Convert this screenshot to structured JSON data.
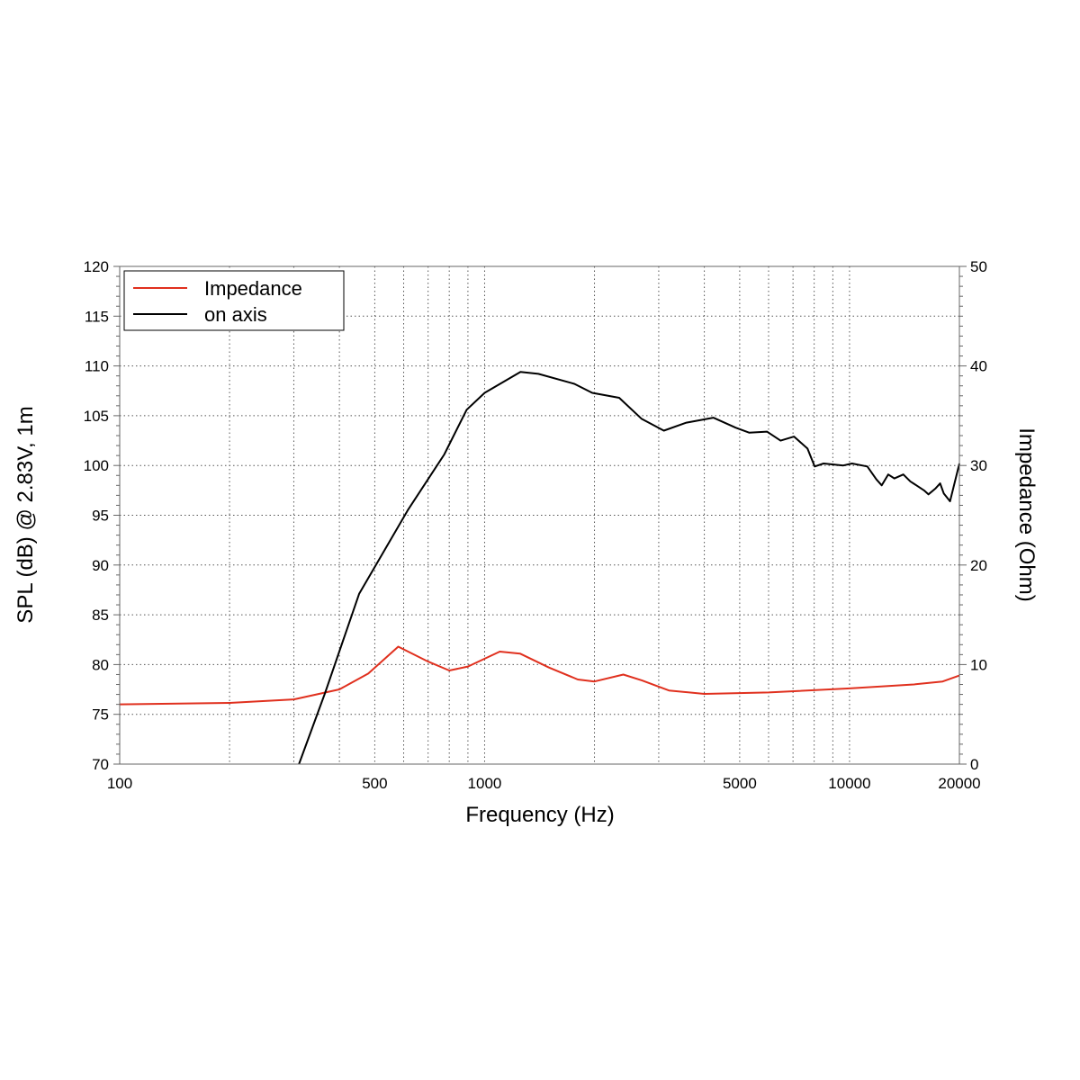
{
  "chart_data": {
    "type": "line",
    "title": "",
    "xlabel": "Frequency (Hz)",
    "ylabel": "SPL (dB) @ 2.83V, 1m",
    "y2label": "Impedance (Ohm)",
    "xscale": "log",
    "xlim": [
      100,
      20000
    ],
    "ylim": [
      70,
      120
    ],
    "y2lim": [
      0,
      50
    ],
    "xticks": [
      100,
      500,
      1000,
      5000,
      10000,
      20000
    ],
    "yticks": [
      70,
      75,
      80,
      85,
      90,
      95,
      100,
      105,
      110,
      115,
      120
    ],
    "y2ticks": [
      0,
      10,
      20,
      30,
      40,
      50
    ],
    "grid": true,
    "legend_position": "top-left",
    "series": [
      {
        "name": "Impedance",
        "axis": "right",
        "color": "#e0301e",
        "x": [
          100,
          200,
          300,
          400,
          480,
          580,
          700,
          800,
          900,
          1100,
          1250,
          1500,
          1800,
          2000,
          2400,
          2700,
          3200,
          4000,
          6000,
          10000,
          15000,
          18000,
          20000
        ],
        "y": [
          6.0,
          6.15,
          6.5,
          7.5,
          9.1,
          11.8,
          10.3,
          9.4,
          9.8,
          11.3,
          11.1,
          9.7,
          8.5,
          8.3,
          9.0,
          8.4,
          7.4,
          7.05,
          7.2,
          7.6,
          8.0,
          8.3,
          8.9
        ]
      },
      {
        "name": "on axis",
        "axis": "left",
        "color": "#000000",
        "x": [
          310,
          365,
          453,
          618,
          775,
          893,
          1000,
          1254,
          1404,
          1762,
          1972,
          2337,
          2690,
          3099,
          3573,
          4235,
          4875,
          5305,
          5940,
          6471,
          7047,
          7670,
          8024,
          8490,
          9614,
          10160,
          11190,
          11850,
          12250,
          12760,
          13270,
          14040,
          14680,
          15990,
          16450,
          17220,
          17710,
          18120,
          18850,
          20000
        ],
        "y": [
          70,
          77.1,
          87.1,
          95.6,
          101.1,
          105.6,
          107.3,
          109.4,
          109.2,
          108.2,
          107.3,
          106.8,
          104.7,
          103.5,
          104.3,
          104.8,
          103.8,
          103.3,
          103.4,
          102.5,
          102.9,
          101.7,
          99.9,
          100.2,
          100.0,
          100.2,
          99.9,
          98.6,
          98.0,
          99.1,
          98.7,
          99.1,
          98.4,
          97.5,
          97.1,
          97.7,
          98.2,
          97.2,
          96.4,
          100.2
        ]
      }
    ]
  }
}
